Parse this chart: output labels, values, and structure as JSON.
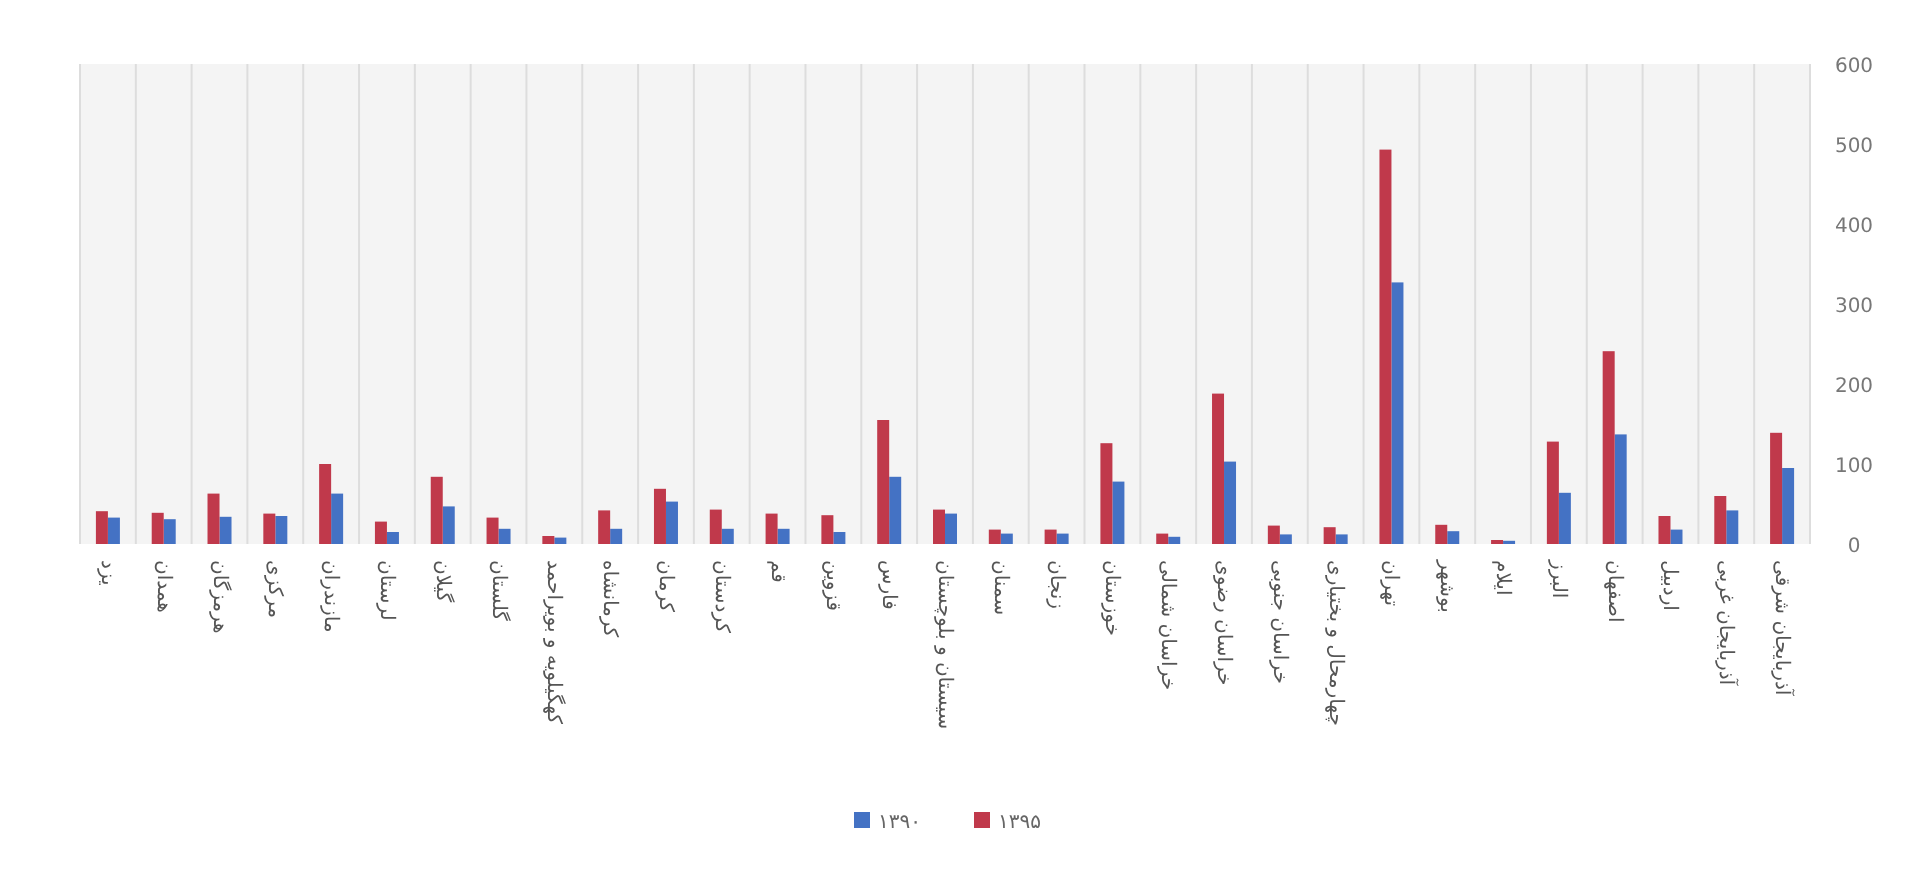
{
  "chart_data": {
    "type": "bar",
    "categories": [
      "یزد",
      "همدان",
      "هرمزگان",
      "مرکزی",
      "مازندران",
      "لرستان",
      "گیلان",
      "گلستان",
      "کهگیلویه و بویراحمد",
      "کرمانشاه",
      "کرمان",
      "کردستان",
      "قم",
      "قزوین",
      "فارس",
      "سیستان و بلوچستان",
      "سمنان",
      "زنجان",
      "خوزستان",
      "خراسان شمالی",
      "خراسان رضوی",
      "خراسان جنوبی",
      "چهارمحال و بختیاری",
      "تهران",
      "بوشهر",
      "ایلام",
      "البرز",
      "اصفهان",
      "اردبیل",
      "آذربایجان غربی",
      "آذربایجان شرقی"
    ],
    "series": [
      {
        "name": "۱۳۹۰",
        "color": "#4472c4",
        "values": [
          33,
          31,
          34,
          35,
          63,
          15,
          47,
          19,
          8,
          19,
          53,
          19,
          19,
          15,
          84,
          38,
          13,
          13,
          78,
          9,
          103,
          12,
          12,
          327,
          16,
          4,
          64,
          137,
          18,
          42,
          95
        ]
      },
      {
        "name": "۱۳۹۵",
        "color": "#c0394b",
        "values": [
          41,
          39,
          63,
          38,
          100,
          28,
          84,
          33,
          10,
          42,
          69,
          43,
          38,
          36,
          155,
          43,
          18,
          18,
          126,
          13,
          188,
          23,
          21,
          493,
          24,
          5,
          128,
          241,
          35,
          60,
          139
        ]
      }
    ],
    "ylim": [
      0,
      600
    ],
    "yticks": [
      0,
      100,
      200,
      300,
      400,
      500,
      600
    ],
    "grid": "x",
    "legend": "bottom"
  }
}
